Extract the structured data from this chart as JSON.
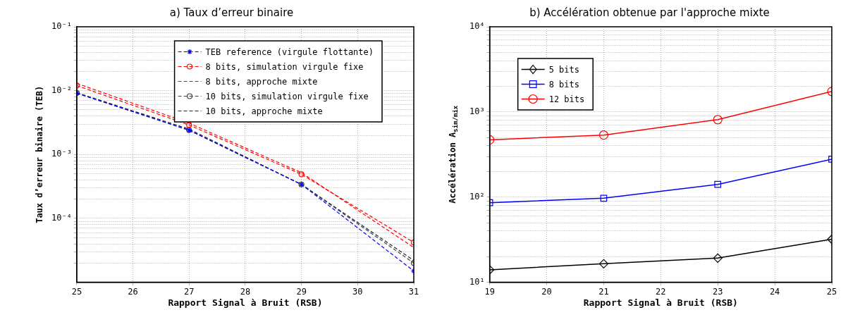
{
  "chart_data": [
    {
      "type": "line",
      "title": "a) Taux d’erreur binaire",
      "xlabel": "Rapport Signal à Bruit (RSB)",
      "ylabel": "Taux d’erreur binaire (TEB)",
      "x": [
        25,
        27,
        29,
        31
      ],
      "log": "y",
      "grid": true,
      "legend": "top right",
      "line_style": "dashed",
      "xlim": [
        25,
        31
      ],
      "xticks": [
        25,
        26,
        27,
        28,
        29,
        30,
        31
      ],
      "ylim": [
        1e-05,
        0.1
      ],
      "yticks": [
        {
          "value": 2e-05,
          "label": null
        },
        {
          "value": 3e-05,
          "label": null
        },
        {
          "value": 4e-05,
          "label": null
        },
        {
          "value": 5e-05,
          "label": null
        },
        {
          "value": 6e-05,
          "label": null
        },
        {
          "value": 7e-05,
          "label": null
        },
        {
          "value": 8e-05,
          "label": null
        },
        {
          "value": 9e-05,
          "label": null
        },
        {
          "value": 0.0001,
          "label": "10⁻⁴"
        },
        {
          "value": 0.0002,
          "label": null
        },
        {
          "value": 0.0003,
          "label": null
        },
        {
          "value": 0.0004,
          "label": null
        },
        {
          "value": 0.0005,
          "label": null
        },
        {
          "value": 0.0006,
          "label": null
        },
        {
          "value": 0.0007,
          "label": null
        },
        {
          "value": 0.0008,
          "label": null
        },
        {
          "value": 0.0009,
          "label": null
        },
        {
          "value": 0.001,
          "label": "10⁻³"
        },
        {
          "value": 0.002,
          "label": null
        },
        {
          "value": 0.003,
          "label": null
        },
        {
          "value": 0.004,
          "label": null
        },
        {
          "value": 0.005,
          "label": null
        },
        {
          "value": 0.006,
          "label": null
        },
        {
          "value": 0.007,
          "label": null
        },
        {
          "value": 0.008,
          "label": null
        },
        {
          "value": 0.009,
          "label": null
        },
        {
          "value": 0.01,
          "label": "10⁻²"
        },
        {
          "value": 0.02,
          "label": null
        },
        {
          "value": 0.03,
          "label": null
        },
        {
          "value": 0.04,
          "label": null
        },
        {
          "value": 0.05,
          "label": null
        },
        {
          "value": 0.06,
          "label": null
        },
        {
          "value": 0.07,
          "label": null
        },
        {
          "value": 0.08,
          "label": null
        },
        {
          "value": 0.09,
          "label": null
        },
        {
          "value": 0.1,
          "label": "10⁻¹"
        }
      ],
      "series": [
        {
          "name": "TEB reference (virgule flottante)",
          "color": "#0000ff",
          "marker": "cross",
          "values": [
            0.0091,
            0.0024,
            0.00034,
            1.5e-05
          ]
        },
        {
          "name": "8 bits, simulation virgule fixe",
          "color": "#ff0000",
          "marker": "circle",
          "values": [
            0.012,
            0.0029,
            0.00049,
            4.2e-05
          ]
        },
        {
          "name": "8 bits, approche mixte",
          "color": "#ff0000",
          "marker": "none",
          "values": [
            0.013,
            0.0031,
            0.00052,
            3.5e-05
          ]
        },
        {
          "name": "10 bits, simulation virgule fixe",
          "color": "#404040",
          "marker": "circle",
          "values": [
            0.0092,
            0.0024,
            0.00034,
            2e-05
          ]
        },
        {
          "name": "10 bits, approche mixte",
          "color": "#202030",
          "marker": "none",
          "values": [
            0.0093,
            0.0025,
            0.00034,
            2.2e-05
          ]
        }
      ]
    },
    {
      "type": "line",
      "title": "b) Accélération obtenue par l'approche mixte",
      "xlabel": "Rapport Signal à Bruit (RSB)",
      "ylabel": "Accélération A$_{sim/mix}$",
      "x": [
        19,
        21,
        23,
        25
      ],
      "log": "y",
      "grid": true,
      "legend": "top left",
      "line_style": "solid",
      "xlim": [
        19,
        25
      ],
      "xticks": [
        19,
        20,
        21,
        22,
        23,
        24,
        25
      ],
      "ylim": [
        10,
        10000
      ],
      "yticks": [
        {
          "value": 10,
          "label": "10¹"
        },
        {
          "value": 20,
          "label": null
        },
        {
          "value": 30,
          "label": null
        },
        {
          "value": 40,
          "label": null
        },
        {
          "value": 50,
          "label": null
        },
        {
          "value": 60,
          "label": null
        },
        {
          "value": 70,
          "label": null
        },
        {
          "value": 80,
          "label": null
        },
        {
          "value": 90,
          "label": null
        },
        {
          "value": 100,
          "label": "10²"
        },
        {
          "value": 200,
          "label": null
        },
        {
          "value": 300,
          "label": null
        },
        {
          "value": 400,
          "label": null
        },
        {
          "value": 500,
          "label": null
        },
        {
          "value": 600,
          "label": null
        },
        {
          "value": 700,
          "label": null
        },
        {
          "value": 800,
          "label": null
        },
        {
          "value": 900,
          "label": null
        },
        {
          "value": 1000,
          "label": "10³"
        },
        {
          "value": 2000,
          "label": null
        },
        {
          "value": 3000,
          "label": null
        },
        {
          "value": 4000,
          "label": null
        },
        {
          "value": 5000,
          "label": null
        },
        {
          "value": 6000,
          "label": null
        },
        {
          "value": 7000,
          "label": null
        },
        {
          "value": 8000,
          "label": null
        },
        {
          "value": 9000,
          "label": null
        },
        {
          "value": 10000,
          "label": "10⁴"
        }
      ],
      "series": [
        {
          "name": "5 bits",
          "color": "#000000",
          "marker": "diamond",
          "values": [
            14,
            16.5,
            19.2,
            32
          ]
        },
        {
          "name": "8 bits",
          "color": "#0000ff",
          "marker": "square",
          "values": [
            86,
            97,
            141,
            279
          ]
        },
        {
          "name": "12 bits",
          "color": "#ff0000",
          "marker": "circle",
          "values": [
            471,
            535,
            813,
            1740
          ]
        }
      ]
    }
  ]
}
